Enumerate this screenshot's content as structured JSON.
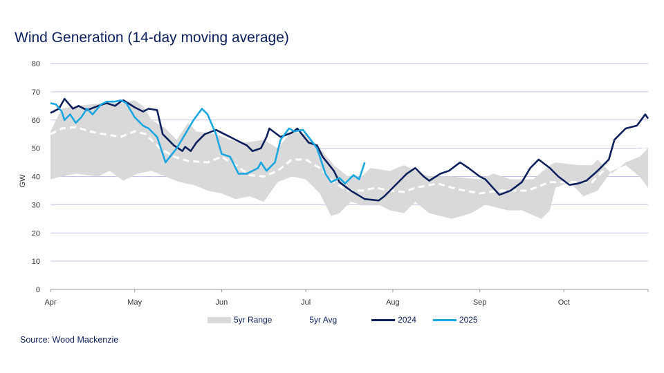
{
  "chart_data": {
    "type": "line",
    "title": "Wind Generation (14-day moving average)",
    "ylabel": "GW",
    "xlabel": "",
    "ylim": [
      0,
      80
    ],
    "yticks": [
      0,
      10,
      20,
      30,
      40,
      50,
      60,
      70,
      80
    ],
    "xlim": [
      "04-01",
      "10-31"
    ],
    "xticks": [
      {
        "label": "Apr",
        "date": "04-01"
      },
      {
        "label": "May",
        "date": "05-01"
      },
      {
        "label": "Jun",
        "date": "06-01"
      },
      {
        "label": "Jul",
        "date": "07-01"
      },
      {
        "label": "Aug",
        "date": "08-01"
      },
      {
        "label": "Sep",
        "date": "09-01"
      },
      {
        "label": "Oct",
        "date": "10-01"
      }
    ],
    "grid": true,
    "legend_position": "bottom",
    "colors": {
      "range": "#d9d9d9",
      "avg": "#ffffff",
      "2024": "#0a1f5c",
      "2025": "#1aa6e0",
      "grid": "#c5c3e8"
    },
    "range": {
      "name": "5yr Range",
      "upper": [
        [
          "04-01",
          56
        ],
        [
          "04-05",
          64
        ],
        [
          "04-10",
          65
        ],
        [
          "04-20",
          66
        ],
        [
          "04-27",
          66
        ],
        [
          "05-01",
          67
        ],
        [
          "05-04",
          65
        ],
        [
          "05-07",
          60
        ],
        [
          "05-12",
          57
        ],
        [
          "05-16",
          53
        ],
        [
          "05-20",
          59
        ],
        [
          "05-23",
          56
        ],
        [
          "05-30",
          55
        ],
        [
          "06-04",
          53
        ],
        [
          "06-09",
          52
        ],
        [
          "06-16",
          53
        ],
        [
          "06-21",
          50
        ],
        [
          "06-26",
          56
        ],
        [
          "07-01",
          55
        ],
        [
          "07-06",
          50
        ],
        [
          "07-11",
          44
        ],
        [
          "07-16",
          40
        ],
        [
          "07-21",
          40
        ],
        [
          "07-24",
          43
        ],
        [
          "07-31",
          42
        ],
        [
          "08-05",
          44
        ],
        [
          "08-09",
          42
        ],
        [
          "08-14",
          40
        ],
        [
          "08-22",
          40
        ],
        [
          "09-01",
          39
        ],
        [
          "09-06",
          41
        ],
        [
          "09-12",
          39
        ],
        [
          "09-20",
          39
        ],
        [
          "09-26",
          44
        ],
        [
          "09-28",
          45
        ],
        [
          "10-06",
          44
        ],
        [
          "10-11",
          44
        ],
        [
          "10-13",
          46
        ],
        [
          "10-18",
          41
        ],
        [
          "10-23",
          45
        ],
        [
          "10-28",
          47
        ],
        [
          "10-31",
          50
        ]
      ],
      "lower": [
        [
          "04-01",
          39
        ],
        [
          "04-05",
          40
        ],
        [
          "04-10",
          41
        ],
        [
          "04-18",
          40
        ],
        [
          "04-22",
          42
        ],
        [
          "04-27",
          38.5
        ],
        [
          "05-02",
          41
        ],
        [
          "05-07",
          42
        ],
        [
          "05-12",
          40
        ],
        [
          "05-17",
          38
        ],
        [
          "05-22",
          37
        ],
        [
          "05-27",
          35
        ],
        [
          "06-01",
          34
        ],
        [
          "06-06",
          32
        ],
        [
          "06-11",
          33
        ],
        [
          "06-16",
          31
        ],
        [
          "06-21",
          38
        ],
        [
          "06-26",
          40
        ],
        [
          "07-01",
          39
        ],
        [
          "07-06",
          34
        ],
        [
          "07-10",
          26
        ],
        [
          "07-13",
          27
        ],
        [
          "07-17",
          31
        ],
        [
          "07-21",
          30
        ],
        [
          "07-27",
          30
        ],
        [
          "07-31",
          28
        ],
        [
          "08-05",
          27
        ],
        [
          "08-09",
          31
        ],
        [
          "08-14",
          27
        ],
        [
          "08-22",
          25
        ],
        [
          "08-29",
          27
        ],
        [
          "09-03",
          30
        ],
        [
          "09-11",
          28
        ],
        [
          "09-16",
          28
        ],
        [
          "09-23",
          25
        ],
        [
          "09-26",
          28
        ],
        [
          "09-28",
          36
        ],
        [
          "10-03",
          38
        ],
        [
          "10-08",
          33
        ],
        [
          "10-13",
          35
        ],
        [
          "10-18",
          42
        ],
        [
          "10-23",
          44
        ],
        [
          "10-28",
          40
        ],
        [
          "10-31",
          36
        ]
      ]
    },
    "series": [
      {
        "name": "5yr Avg",
        "style": "dashed",
        "points": [
          [
            "04-01",
            55
          ],
          [
            "04-05",
            57
          ],
          [
            "04-10",
            57.5
          ],
          [
            "04-15",
            56
          ],
          [
            "04-20",
            55
          ],
          [
            "04-26",
            54
          ],
          [
            "05-01",
            56
          ],
          [
            "05-05",
            55
          ],
          [
            "05-10",
            50
          ],
          [
            "05-15",
            47
          ],
          [
            "05-20",
            45.5
          ],
          [
            "05-27",
            45
          ],
          [
            "06-01",
            47
          ],
          [
            "06-06",
            44
          ],
          [
            "06-11",
            40.5
          ],
          [
            "06-16",
            40
          ],
          [
            "06-21",
            42
          ],
          [
            "06-26",
            46
          ],
          [
            "07-01",
            46
          ],
          [
            "07-06",
            43
          ],
          [
            "07-11",
            38
          ],
          [
            "07-16",
            35
          ],
          [
            "07-21",
            35
          ],
          [
            "07-26",
            36
          ],
          [
            "07-31",
            35
          ],
          [
            "08-05",
            34.5
          ],
          [
            "08-09",
            36
          ],
          [
            "08-17",
            37.5
          ],
          [
            "08-24",
            35.5
          ],
          [
            "09-01",
            34
          ],
          [
            "09-08",
            35
          ],
          [
            "09-18",
            35
          ],
          [
            "09-26",
            38
          ],
          [
            "10-03",
            38
          ],
          [
            "10-11",
            38
          ],
          [
            "10-15",
            42
          ],
          [
            "10-23",
            48
          ],
          [
            "10-28",
            50
          ],
          [
            "10-31",
            50.5
          ]
        ]
      },
      {
        "name": "2024",
        "style": "solid",
        "points": [
          [
            "04-01",
            62.5
          ],
          [
            "04-03",
            63.5
          ],
          [
            "04-04",
            64
          ],
          [
            "04-06",
            67.5
          ],
          [
            "04-09",
            64
          ],
          [
            "04-11",
            65
          ],
          [
            "04-14",
            63.5
          ],
          [
            "04-18",
            65
          ],
          [
            "04-21",
            66
          ],
          [
            "04-24",
            65
          ],
          [
            "04-26",
            66.5
          ],
          [
            "04-27",
            67
          ],
          [
            "05-01",
            64.5
          ],
          [
            "05-04",
            63
          ],
          [
            "05-06",
            64
          ],
          [
            "05-09",
            63.5
          ],
          [
            "05-11",
            55
          ],
          [
            "05-15",
            51
          ],
          [
            "05-18",
            49
          ],
          [
            "05-19",
            50.5
          ],
          [
            "05-21",
            49
          ],
          [
            "05-23",
            52
          ],
          [
            "05-26",
            55
          ],
          [
            "05-30",
            56.5
          ],
          [
            "06-02",
            55
          ],
          [
            "06-06",
            53
          ],
          [
            "06-10",
            51
          ],
          [
            "06-12",
            49
          ],
          [
            "06-15",
            50
          ],
          [
            "06-17",
            54
          ],
          [
            "06-18",
            57
          ],
          [
            "06-22",
            54
          ],
          [
            "06-26",
            55.5
          ],
          [
            "06-28",
            57
          ],
          [
            "07-02",
            52
          ],
          [
            "07-05",
            51
          ],
          [
            "07-07",
            47
          ],
          [
            "07-11",
            42
          ],
          [
            "07-13",
            38
          ],
          [
            "07-17",
            35
          ],
          [
            "07-22",
            32
          ],
          [
            "07-27",
            31.5
          ],
          [
            "07-29",
            33
          ],
          [
            "08-02",
            37
          ],
          [
            "08-06",
            41
          ],
          [
            "08-09",
            43
          ],
          [
            "08-12",
            40
          ],
          [
            "08-14",
            38.5
          ],
          [
            "08-18",
            41
          ],
          [
            "08-21",
            42
          ],
          [
            "08-25",
            45
          ],
          [
            "08-28",
            43
          ],
          [
            "09-01",
            40
          ],
          [
            "09-03",
            39
          ],
          [
            "09-08",
            33.5
          ],
          [
            "09-12",
            35
          ],
          [
            "09-16",
            38
          ],
          [
            "09-19",
            43
          ],
          [
            "09-22",
            46
          ],
          [
            "09-26",
            43
          ],
          [
            "09-29",
            40
          ],
          [
            "10-03",
            37
          ],
          [
            "10-06",
            37.5
          ],
          [
            "10-09",
            38.5
          ],
          [
            "10-13",
            42
          ],
          [
            "10-17",
            46
          ],
          [
            "10-19",
            53
          ],
          [
            "10-23",
            57
          ],
          [
            "10-27",
            58
          ],
          [
            "10-30",
            62
          ],
          [
            "10-31",
            60.5
          ]
        ]
      },
      {
        "name": "2025",
        "style": "solid",
        "points": [
          [
            "04-01",
            66
          ],
          [
            "04-03",
            65.5
          ],
          [
            "04-05",
            63
          ],
          [
            "04-06",
            60
          ],
          [
            "04-08",
            62
          ],
          [
            "04-10",
            59
          ],
          [
            "04-12",
            61
          ],
          [
            "04-14",
            64
          ],
          [
            "04-16",
            62
          ],
          [
            "04-19",
            65.5
          ],
          [
            "04-21",
            66.5
          ],
          [
            "04-24",
            66.5
          ],
          [
            "04-26",
            67
          ],
          [
            "04-28",
            66
          ],
          [
            "05-01",
            61
          ],
          [
            "05-04",
            58
          ],
          [
            "05-06",
            57
          ],
          [
            "05-09",
            54
          ],
          [
            "05-12",
            45
          ],
          [
            "05-16",
            50
          ],
          [
            "05-19",
            55
          ],
          [
            "05-22",
            60
          ],
          [
            "05-25",
            64
          ],
          [
            "05-27",
            62
          ],
          [
            "05-30",
            55
          ],
          [
            "06-01",
            48
          ],
          [
            "06-04",
            47
          ],
          [
            "06-07",
            41
          ],
          [
            "06-10",
            41
          ],
          [
            "06-14",
            43
          ],
          [
            "06-15",
            45
          ],
          [
            "06-17",
            42
          ],
          [
            "06-20",
            45
          ],
          [
            "06-22",
            53
          ],
          [
            "06-25",
            57
          ],
          [
            "06-27",
            56
          ],
          [
            "06-30",
            56.5
          ],
          [
            "07-02",
            54
          ],
          [
            "07-05",
            50
          ],
          [
            "07-08",
            41
          ],
          [
            "07-10",
            38
          ],
          [
            "07-13",
            39.5
          ],
          [
            "07-15",
            37.5
          ],
          [
            "07-18",
            40.5
          ],
          [
            "07-20",
            39
          ],
          [
            "07-22",
            45
          ]
        ]
      }
    ],
    "legend": [
      {
        "label": "5yr Range",
        "key": "range"
      },
      {
        "label": "5yr Avg",
        "key": "avg"
      },
      {
        "label": "2024",
        "key": "2024"
      },
      {
        "label": "2025",
        "key": "2025"
      }
    ]
  },
  "source": "Source: Wood Mackenzie"
}
